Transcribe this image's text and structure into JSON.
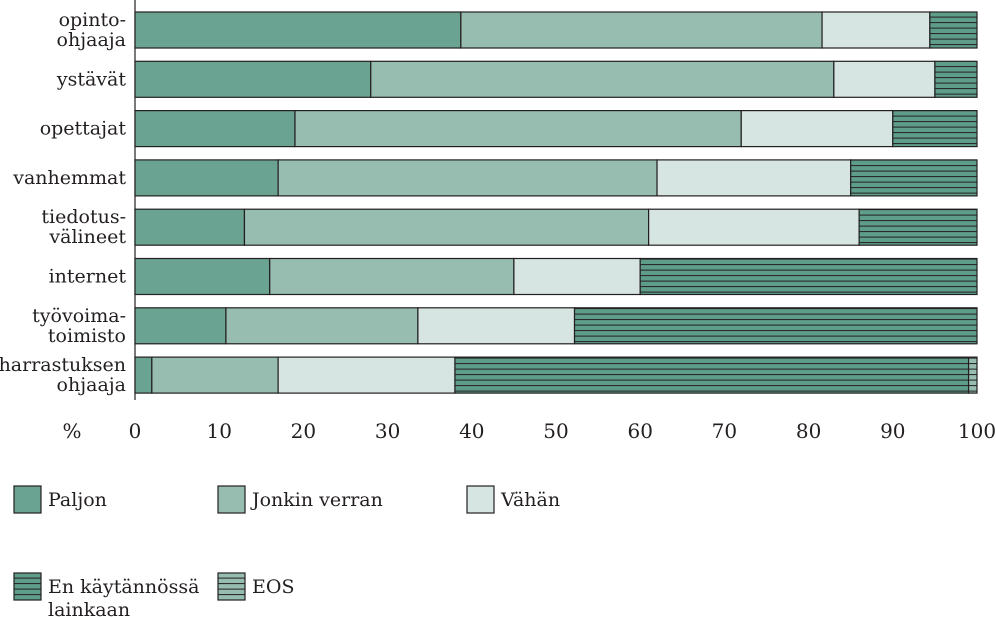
{
  "chart_data": {
    "type": "bar",
    "orientation": "horizontal",
    "stacked": true,
    "categories": [
      [
        "opinto-",
        "ohjaaja"
      ],
      [
        "ystävät"
      ],
      [
        "opettajat"
      ],
      [
        "vanhemmat"
      ],
      [
        "tiedotus-",
        "välineet"
      ],
      [
        "internet"
      ],
      [
        "työvoima-",
        "toimisto"
      ],
      [
        "harrastuksen",
        "ohjaaja"
      ]
    ],
    "series": [
      {
        "name": [
          "Paljon"
        ],
        "color": "#6ba393",
        "pattern": "none",
        "values": [
          38.7,
          28.0,
          19.0,
          17.0,
          13.0,
          16.0,
          10.8,
          2.0
        ]
      },
      {
        "name": [
          "Jonkin verran"
        ],
        "color": "#96bdb0",
        "pattern": "none",
        "values": [
          42.9,
          55.0,
          53.0,
          45.0,
          48.0,
          29.0,
          22.8,
          15.0
        ]
      },
      {
        "name": [
          "Vähän"
        ],
        "color": "#d6e5e1",
        "pattern": "none",
        "values": [
          12.8,
          12.0,
          18.0,
          23.0,
          25.0,
          15.0,
          18.6,
          21.0
        ]
      },
      {
        "name": [
          "En käytännössä",
          "lainkaan"
        ],
        "color": "#5f9d8b",
        "pattern": "hlines",
        "values": [
          5.6,
          5.0,
          10.0,
          15.0,
          14.0,
          40.0,
          47.8,
          61.0
        ]
      },
      {
        "name": [
          "EOS"
        ],
        "color": "#96bdb0",
        "pattern": "hlines",
        "values": [
          0,
          0,
          0,
          0,
          0,
          0,
          0,
          1.0
        ]
      }
    ],
    "x_unit_label": "%",
    "xlim": [
      0,
      100
    ],
    "xticks": [
      "0",
      "10",
      "20",
      "30",
      "40",
      "50",
      "60",
      "70",
      "80",
      "90",
      "100"
    ],
    "grid": false,
    "legend_position": "bottom"
  }
}
